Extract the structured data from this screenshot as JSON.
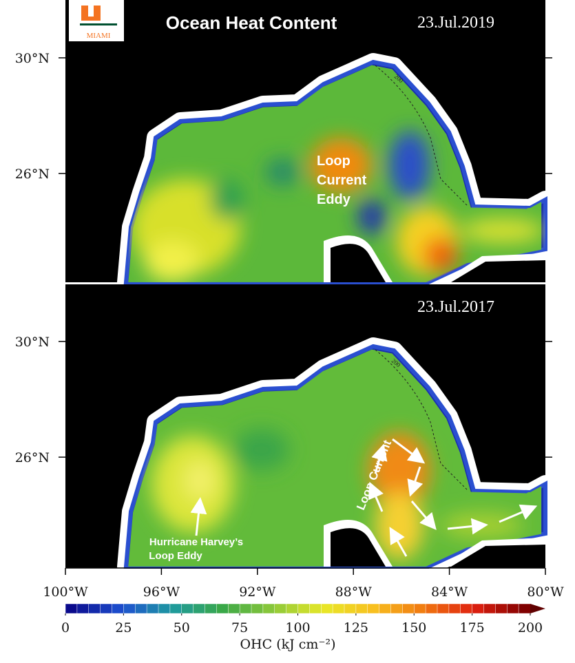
{
  "header": {
    "title": "Ocean Heat Content",
    "logo": "MIAMI"
  },
  "panels": [
    {
      "date": "23.Jul.2019",
      "annotation": [
        "Loop",
        "Current",
        "Eddy"
      ],
      "contour_label": "200"
    },
    {
      "date": "23.Jul.2017",
      "annotation": [
        "Loop Current"
      ],
      "annotation2": [
        "Hurricane Harvey’s",
        "Loop Eddy"
      ],
      "contour_label": "200"
    }
  ],
  "axes": {
    "lat_ticks": [
      {
        "value": 30,
        "label": "30°N"
      },
      {
        "value": 26,
        "label": "26°N"
      }
    ],
    "lon_ticks": [
      {
        "value": -100,
        "label": "100°W"
      },
      {
        "value": -96,
        "label": "96°W"
      },
      {
        "value": -92,
        "label": "92°W"
      },
      {
        "value": -88,
        "label": "88°W"
      },
      {
        "value": -84,
        "label": "84°W"
      },
      {
        "value": -80,
        "label": "80°W"
      }
    ]
  },
  "colorbar": {
    "lim": [
      0,
      200
    ],
    "ticks": [
      0,
      25,
      50,
      75,
      100,
      125,
      150,
      175,
      200
    ],
    "label": "OHC (kJ cm⁻²)"
  }
}
